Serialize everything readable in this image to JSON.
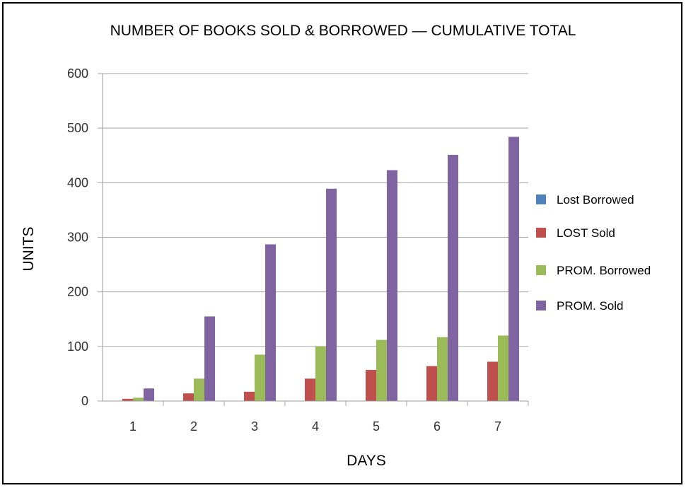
{
  "chart_data": {
    "type": "bar",
    "title": "NUMBER OF BOOKS SOLD & BORROWED — CUMULATIVE TOTAL",
    "xlabel": "DAYS",
    "ylabel": "UNITS",
    "categories": [
      "1",
      "2",
      "3",
      "4",
      "5",
      "6",
      "7"
    ],
    "ylim": [
      0,
      600
    ],
    "yticks": [
      "0",
      "100",
      "200",
      "300",
      "400",
      "500",
      "600"
    ],
    "grid": true,
    "legend_position": "right",
    "series": [
      {
        "name": "Lost Borrowed",
        "color": "#4F81BD",
        "values": [
          0,
          0,
          0,
          0,
          0,
          0,
          0
        ]
      },
      {
        "name": "LOST Sold",
        "color": "#C0504D",
        "values": [
          4,
          14,
          17,
          41,
          57,
          64,
          72
        ]
      },
      {
        "name": "PROM. Borrowed",
        "color": "#9BBB59",
        "values": [
          6,
          41,
          85,
          100,
          112,
          117,
          120
        ]
      },
      {
        "name": "PROM. Sold",
        "color": "#8064A2",
        "values": [
          23,
          155,
          287,
          389,
          423,
          451,
          484
        ]
      }
    ]
  }
}
